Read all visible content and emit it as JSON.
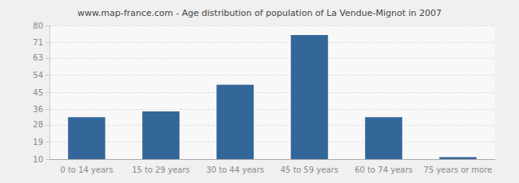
{
  "chart_data": {
    "type": "bar",
    "title": "www.map-france.com - Age distribution of population of La Vendue-Mignot in 2007",
    "categories": [
      "0 to 14 years",
      "15 to 29 years",
      "30 to 44 years",
      "45 to 59 years",
      "60 to 74 years",
      "75 years or more"
    ],
    "values": [
      32,
      35,
      49,
      75,
      32,
      11
    ],
    "color": "#336699",
    "ylim": [
      10,
      80
    ],
    "yticks": [
      10,
      19,
      28,
      36,
      45,
      54,
      63,
      71,
      80
    ],
    "grid": true
  }
}
